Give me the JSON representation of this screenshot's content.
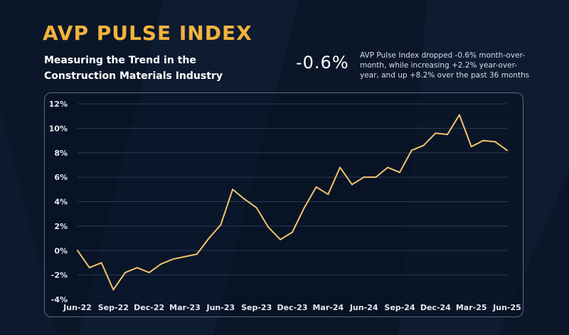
{
  "header": {
    "title": "AVP PULSE INDEX",
    "subtitle": "Measuring the Trend in the Construction Materials Industry"
  },
  "summary": {
    "change": "-0.6%",
    "description": "AVP Pulse Index dropped -0.6% month-over-month, while increasing +2.2% year-over-year, and up +8.2% over the past 36 months"
  },
  "colors": {
    "accent": "#f2b33d",
    "line": "#f2c46d",
    "background": "#0b1628"
  },
  "chart_data": {
    "type": "line",
    "title": "",
    "xlabel": "",
    "ylabel": "",
    "grid": true,
    "ylim": [
      -4,
      12
    ],
    "yticks": [
      12,
      10,
      8,
      6,
      4,
      2,
      0,
      -2,
      -4
    ],
    "ytick_labels": [
      "12%",
      "10%",
      "8%",
      "6%",
      "4%",
      "2%",
      "0%",
      "-2%",
      "-4%"
    ],
    "x": [
      "Jun-22",
      "Jul-22",
      "Aug-22",
      "Sep-22",
      "Oct-22",
      "Nov-22",
      "Dec-22",
      "Jan-23",
      "Feb-23",
      "Mar-23",
      "Apr-23",
      "May-23",
      "Jun-23",
      "Jul-23",
      "Aug-23",
      "Sep-23",
      "Oct-23",
      "Nov-23",
      "Dec-23",
      "Jan-24",
      "Feb-24",
      "Mar-24",
      "Apr-24",
      "May-24",
      "Jun-24",
      "Jul-24",
      "Aug-24",
      "Sep-24",
      "Oct-24",
      "Nov-24",
      "Dec-24",
      "Jan-25",
      "Feb-25",
      "Mar-25",
      "Apr-25",
      "May-25",
      "Jun-25"
    ],
    "xtick_labels": [
      "Jun-22",
      "Sep-22",
      "Dec-22",
      "Mar-23",
      "Jun-23",
      "Sep-23",
      "Dec-23",
      "Mar-24",
      "Jun-24",
      "Sep-24",
      "Dec-24",
      "Mar-25",
      "Jun-25"
    ],
    "series": [
      {
        "values": [
          0.0,
          -1.4,
          -1.0,
          -3.2,
          -1.8,
          -1.4,
          -1.8,
          -1.1,
          -0.7,
          -0.5,
          -0.3,
          1.0,
          2.1,
          5.0,
          4.2,
          3.5,
          1.9,
          0.9,
          1.5,
          3.5,
          5.2,
          4.6,
          6.8,
          5.4,
          6.0,
          6.0,
          6.8,
          6.4,
          8.2,
          8.6,
          9.6,
          9.5,
          11.1,
          8.5,
          9.0,
          8.9,
          8.2
        ]
      }
    ]
  }
}
